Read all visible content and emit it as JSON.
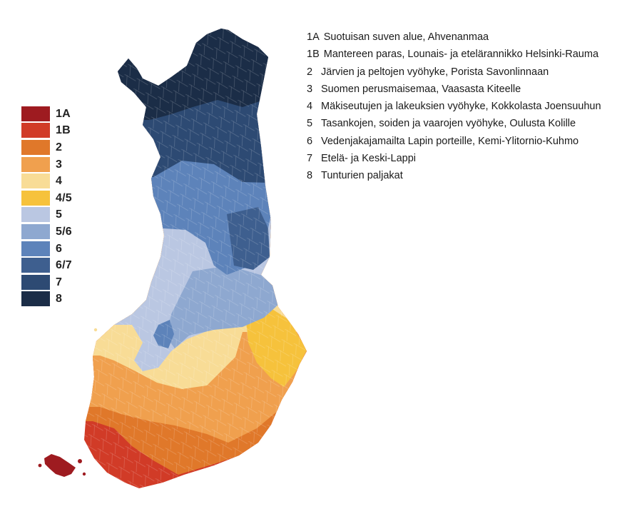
{
  "legend": {
    "items": [
      {
        "code": "1A",
        "color": "#9e1b20"
      },
      {
        "code": "1B",
        "color": "#d13b27"
      },
      {
        "code": "2",
        "color": "#e0782a"
      },
      {
        "code": "3",
        "color": "#f0a04e"
      },
      {
        "code": "4",
        "color": "#f8dc96"
      },
      {
        "code": "4/5",
        "color": "#f6c23c"
      },
      {
        "code": "5",
        "color": "#bac7e2"
      },
      {
        "code": "5/6",
        "color": "#8ea8d0"
      },
      {
        "code": "6",
        "color": "#5d83ba"
      },
      {
        "code": "6/7",
        "color": "#3e5f8f"
      },
      {
        "code": "7",
        "color": "#2d4a73"
      },
      {
        "code": "8",
        "color": "#1b2d47"
      }
    ]
  },
  "zones": [
    {
      "code": "1A",
      "label": "Suotuisan suven alue, Ahvenanmaa"
    },
    {
      "code": "1B",
      "label": "Mantereen paras, Lounais- ja etelärannikko Helsinki-Rauma"
    },
    {
      "code": "2",
      "label": "Järvien ja peltojen vyöhyke, Porista Savonlinnaan"
    },
    {
      "code": "3",
      "label": "Suomen perusmaisemaa, Vaasasta Kiteelle"
    },
    {
      "code": "4",
      "label": "Mäkiseutujen ja lakeuksien vyöhyke, Kokkolasta Joensuuhun"
    },
    {
      "code": "5",
      "label": "Tasankojen, soiden ja vaarojen vyöhyke, Oulusta Kolille"
    },
    {
      "code": "6",
      "label": "Vedenjakajamailta Lapin porteille, Kemi-Ylitornio-Kuhmo"
    },
    {
      "code": "7",
      "label": "Etelä- ja Keski-Lappi"
    },
    {
      "code": "8",
      "label": "Tunturien paljakat"
    }
  ]
}
